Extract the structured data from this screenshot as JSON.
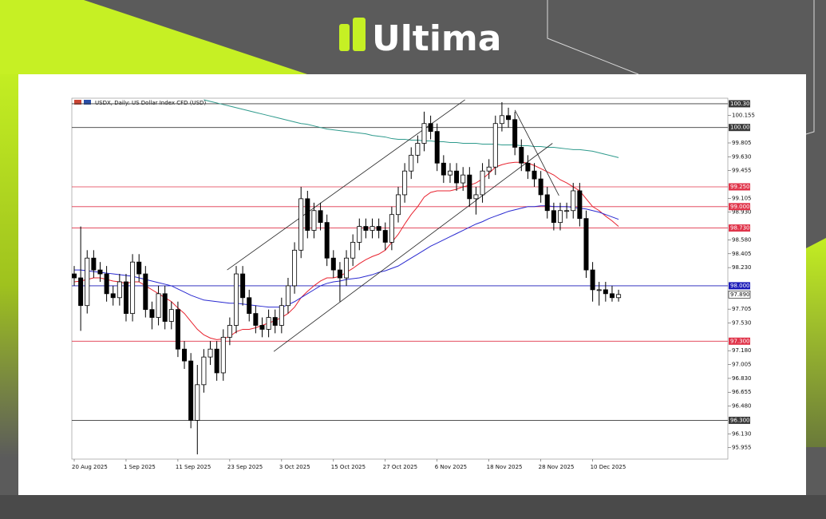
{
  "brand": "Ultima",
  "chart_data": {
    "type": "candlestick",
    "title": "USDX, Daily:  US Dollar Index CFD (USD)",
    "categories": [
      "20 Aug 2025",
      null,
      null,
      null,
      null,
      null,
      null,
      null,
      "1 Sep 2025",
      null,
      null,
      null,
      null,
      null,
      null,
      null,
      "11 Sep 2025",
      null,
      null,
      null,
      null,
      null,
      null,
      null,
      "23 Sep 2025",
      null,
      null,
      null,
      null,
      null,
      null,
      null,
      "3 Oct 2025",
      null,
      null,
      null,
      null,
      null,
      null,
      null,
      "15 Oct 2025",
      null,
      null,
      null,
      null,
      null,
      null,
      null,
      "27 Oct 2025",
      null,
      null,
      null,
      null,
      null,
      null,
      null,
      "6 Nov 2025",
      null,
      null,
      null,
      null,
      null,
      null,
      null,
      "18 Nov 2025",
      null,
      null,
      null,
      null,
      null,
      null,
      null,
      "28 Nov 2025",
      null,
      null,
      null,
      null,
      null,
      null,
      null,
      "10 Dec 2025",
      null,
      null,
      null,
      null
    ],
    "open": [
      98.15,
      98.1,
      97.75,
      98.35,
      98.2,
      98.15,
      97.9,
      97.85,
      98.05,
      97.65,
      98.3,
      98.15,
      97.7,
      97.6,
      97.9,
      97.55,
      97.7,
      97.2,
      97.05,
      96.3,
      96.75,
      97.1,
      97.2,
      96.9,
      97.35,
      97.5,
      98.15,
      97.85,
      97.65,
      97.5,
      97.45,
      97.6,
      97.5,
      97.75,
      98.0,
      98.45,
      99.1,
      98.7,
      98.95,
      98.8,
      98.35,
      98.2,
      98.1,
      98.35,
      98.55,
      98.75,
      98.7,
      98.75,
      98.7,
      98.55,
      98.9,
      99.15,
      99.45,
      99.65,
      99.8,
      100.05,
      99.95,
      99.55,
      99.4,
      99.45,
      99.3,
      99.4,
      99.1,
      99.15,
      99.45,
      99.5,
      100.05,
      100.15,
      100.1,
      99.75,
      99.55,
      99.45,
      99.35,
      99.15,
      98.95,
      98.8,
      98.95,
      98.95,
      99.2,
      98.85,
      98.2,
      97.95,
      97.95,
      97.9,
      97.85
    ],
    "high": [
      98.25,
      98.75,
      98.45,
      98.45,
      98.3,
      98.25,
      98.0,
      98.15,
      98.15,
      98.4,
      98.4,
      98.25,
      97.8,
      98.0,
      98.0,
      97.8,
      97.8,
      97.3,
      97.15,
      97.0,
      97.2,
      97.3,
      97.3,
      97.45,
      97.6,
      98.25,
      98.25,
      97.95,
      97.75,
      97.6,
      97.7,
      97.7,
      97.85,
      98.1,
      98.55,
      99.25,
      99.2,
      99.05,
      99.05,
      98.9,
      98.45,
      98.3,
      98.45,
      98.65,
      98.85,
      98.85,
      98.85,
      98.85,
      98.8,
      99.0,
      99.25,
      99.55,
      99.75,
      99.9,
      100.2,
      100.15,
      100.05,
      99.65,
      99.55,
      99.55,
      99.5,
      99.5,
      99.25,
      99.55,
      99.6,
      100.15,
      100.32,
      100.25,
      100.2,
      99.85,
      99.65,
      99.55,
      99.45,
      99.25,
      99.05,
      99.05,
      99.05,
      99.3,
      99.3,
      98.95,
      98.3,
      98.05,
      98.05,
      98.0,
      97.95
    ],
    "low": [
      98.0,
      97.43,
      97.65,
      98.1,
      98.05,
      97.8,
      97.75,
      97.75,
      97.55,
      97.55,
      98.05,
      97.6,
      97.45,
      97.5,
      97.45,
      97.45,
      97.1,
      96.95,
      96.2,
      95.87,
      96.65,
      97.0,
      96.8,
      96.8,
      97.25,
      97.4,
      97.75,
      97.55,
      97.4,
      97.35,
      97.35,
      97.4,
      97.4,
      97.65,
      97.9,
      98.35,
      98.6,
      98.6,
      98.7,
      98.25,
      98.1,
      97.8,
      98.0,
      98.25,
      98.45,
      98.6,
      98.6,
      98.6,
      98.45,
      98.45,
      98.8,
      99.05,
      99.35,
      99.55,
      99.7,
      99.85,
      99.45,
      99.3,
      99.3,
      99.2,
      99.2,
      99.0,
      98.9,
      99.05,
      99.35,
      99.4,
      99.95,
      100.0,
      99.65,
      99.45,
      99.35,
      99.25,
      99.05,
      98.85,
      98.7,
      98.7,
      98.85,
      98.85,
      98.75,
      98.1,
      97.8,
      97.75,
      97.8,
      97.8,
      97.8
    ],
    "close": [
      98.1,
      97.75,
      98.35,
      98.2,
      98.15,
      97.9,
      97.85,
      98.05,
      97.65,
      98.3,
      98.15,
      97.7,
      97.6,
      97.9,
      97.55,
      97.7,
      97.2,
      97.05,
      96.3,
      96.75,
      97.1,
      97.2,
      96.9,
      97.35,
      97.5,
      98.15,
      97.85,
      97.65,
      97.5,
      97.45,
      97.6,
      97.5,
      97.75,
      98.0,
      98.45,
      99.1,
      98.7,
      98.95,
      98.8,
      98.35,
      98.2,
      98.1,
      98.35,
      98.55,
      98.75,
      98.7,
      98.75,
      98.7,
      98.55,
      98.9,
      99.15,
      99.45,
      99.65,
      99.8,
      100.05,
      99.95,
      99.55,
      99.4,
      99.45,
      99.3,
      99.4,
      99.1,
      99.15,
      99.45,
      99.5,
      100.05,
      100.15,
      100.1,
      99.75,
      99.55,
      99.45,
      99.35,
      99.15,
      98.95,
      98.8,
      98.95,
      98.95,
      99.2,
      98.85,
      98.2,
      97.95,
      97.95,
      97.9,
      97.85,
      97.89
    ],
    "up_color": "#ffffff",
    "down_color": "#000000",
    "moving_averages": [
      {
        "color": "#e8232f",
        "values": [
          98.05,
          98.06,
          98.08,
          98.1,
          98.1,
          98.08,
          98.06,
          98.05,
          98.03,
          98.05,
          98.05,
          98.0,
          97.95,
          97.9,
          97.85,
          97.8,
          97.72,
          97.65,
          97.55,
          97.45,
          97.38,
          97.34,
          97.32,
          97.33,
          97.36,
          97.42,
          97.45,
          97.45,
          97.47,
          97.5,
          97.53,
          97.56,
          97.6,
          97.65,
          97.73,
          97.85,
          97.93,
          98.0,
          98.06,
          98.1,
          98.1,
          98.12,
          98.17,
          98.22,
          98.28,
          98.33,
          98.37,
          98.4,
          98.45,
          98.55,
          98.65,
          98.78,
          98.9,
          99.0,
          99.12,
          99.18,
          99.2,
          99.2,
          99.2,
          99.22,
          99.25,
          99.27,
          99.3,
          99.35,
          99.42,
          99.5,
          99.53,
          99.55,
          99.56,
          99.56,
          99.55,
          99.52,
          99.48,
          99.44,
          99.4,
          99.34,
          99.3,
          99.25,
          99.2,
          99.1,
          99.0,
          98.95,
          98.88,
          98.82,
          98.75
        ]
      },
      {
        "color": "#2a2ad0",
        "values": [
          98.2,
          98.2,
          98.19,
          98.18,
          98.17,
          98.16,
          98.15,
          98.14,
          98.13,
          98.12,
          98.1,
          98.08,
          98.06,
          98.04,
          98.02,
          98.0,
          97.96,
          97.92,
          97.88,
          97.85,
          97.82,
          97.81,
          97.8,
          97.79,
          97.78,
          97.78,
          97.77,
          97.76,
          97.75,
          97.74,
          97.73,
          97.73,
          97.73,
          97.76,
          97.8,
          97.85,
          97.9,
          97.95,
          98.0,
          98.03,
          98.05,
          98.06,
          98.08,
          98.09,
          98.1,
          98.12,
          98.14,
          98.17,
          98.19,
          98.22,
          98.25,
          98.3,
          98.35,
          98.4,
          98.45,
          98.5,
          98.54,
          98.58,
          98.62,
          98.66,
          98.7,
          98.74,
          98.78,
          98.81,
          98.85,
          98.88,
          98.91,
          98.94,
          98.96,
          98.98,
          99.0,
          99.0,
          99.01,
          99.01,
          99.0,
          99.0,
          99.0,
          98.99,
          98.98,
          98.97,
          98.95,
          98.93,
          98.9,
          98.87,
          98.84
        ]
      },
      {
        "color": "#2e9a8c",
        "values": [
          null,
          null,
          null,
          null,
          null,
          null,
          null,
          null,
          null,
          null,
          null,
          null,
          null,
          null,
          null,
          null,
          null,
          null,
          null,
          null,
          100.35,
          100.33,
          100.31,
          100.29,
          100.27,
          100.25,
          100.23,
          100.21,
          100.19,
          100.17,
          100.15,
          100.13,
          100.11,
          100.09,
          100.07,
          100.05,
          100.04,
          100.02,
          100.0,
          99.98,
          99.97,
          99.96,
          99.95,
          99.94,
          99.93,
          99.92,
          99.9,
          99.89,
          99.88,
          99.86,
          99.85,
          99.85,
          99.84,
          99.84,
          99.83,
          99.83,
          99.82,
          99.82,
          99.81,
          99.81,
          99.8,
          99.8,
          99.8,
          99.79,
          99.79,
          99.79,
          99.78,
          99.78,
          99.78,
          99.77,
          99.77,
          99.76,
          99.76,
          99.75,
          99.75,
          99.74,
          99.73,
          99.72,
          99.72,
          99.71,
          99.7,
          99.68,
          99.66,
          99.64,
          99.62
        ]
      }
    ],
    "trend_lines": [
      {
        "x": [
          23.6,
          60.3
        ],
        "y": [
          98.2,
          100.35
        ]
      },
      {
        "x": [
          30.8,
          73.8
        ],
        "y": [
          97.17,
          99.8
        ]
      },
      {
        "x": [
          68,
          74.8
        ],
        "y": [
          100.22,
          99.14
        ]
      }
    ],
    "levels": [
      {
        "value": 100.3,
        "label": "100.300",
        "color": "#3a3a3a"
      },
      {
        "value": 100.0,
        "label": "100.000",
        "color": "#3a3a3a"
      },
      {
        "value": 99.25,
        "label": "99.250",
        "color": "#e0344a"
      },
      {
        "value": 99.0,
        "label": "99.000",
        "color": "#e0344a"
      },
      {
        "value": 98.73,
        "label": "98.730",
        "color": "#e0344a"
      },
      {
        "value": 98.0,
        "label": "98.000",
        "color": "#1a1ab8"
      },
      {
        "value": 97.3,
        "label": "97.300",
        "color": "#e0344a"
      },
      {
        "value": 96.3,
        "label": "96.300",
        "color": "#3a3a3a"
      }
    ],
    "last_price": {
      "value": 97.89,
      "label": "97.890"
    },
    "ylim": [
      95.81,
      100.37
    ],
    "yticks": [
      100.155,
      99.805,
      {
        "value": 99.63,
        "label": "99.630"
      },
      99.455,
      99.105,
      {
        "value": 98.93,
        "label": "98.930"
      },
      {
        "value": 98.58,
        "label": "98.580"
      },
      98.405,
      {
        "value": 98.23,
        "label": "98.230"
      },
      97.705,
      {
        "value": 97.53,
        "label": "97.530"
      },
      {
        "value": 97.18,
        "label": "97.180"
      },
      97.005,
      {
        "value": 96.83,
        "label": "96.830"
      },
      96.655,
      {
        "value": 96.48,
        "label": "96.480"
      },
      {
        "value": 96.13,
        "label": "96.130"
      },
      95.955
    ]
  }
}
